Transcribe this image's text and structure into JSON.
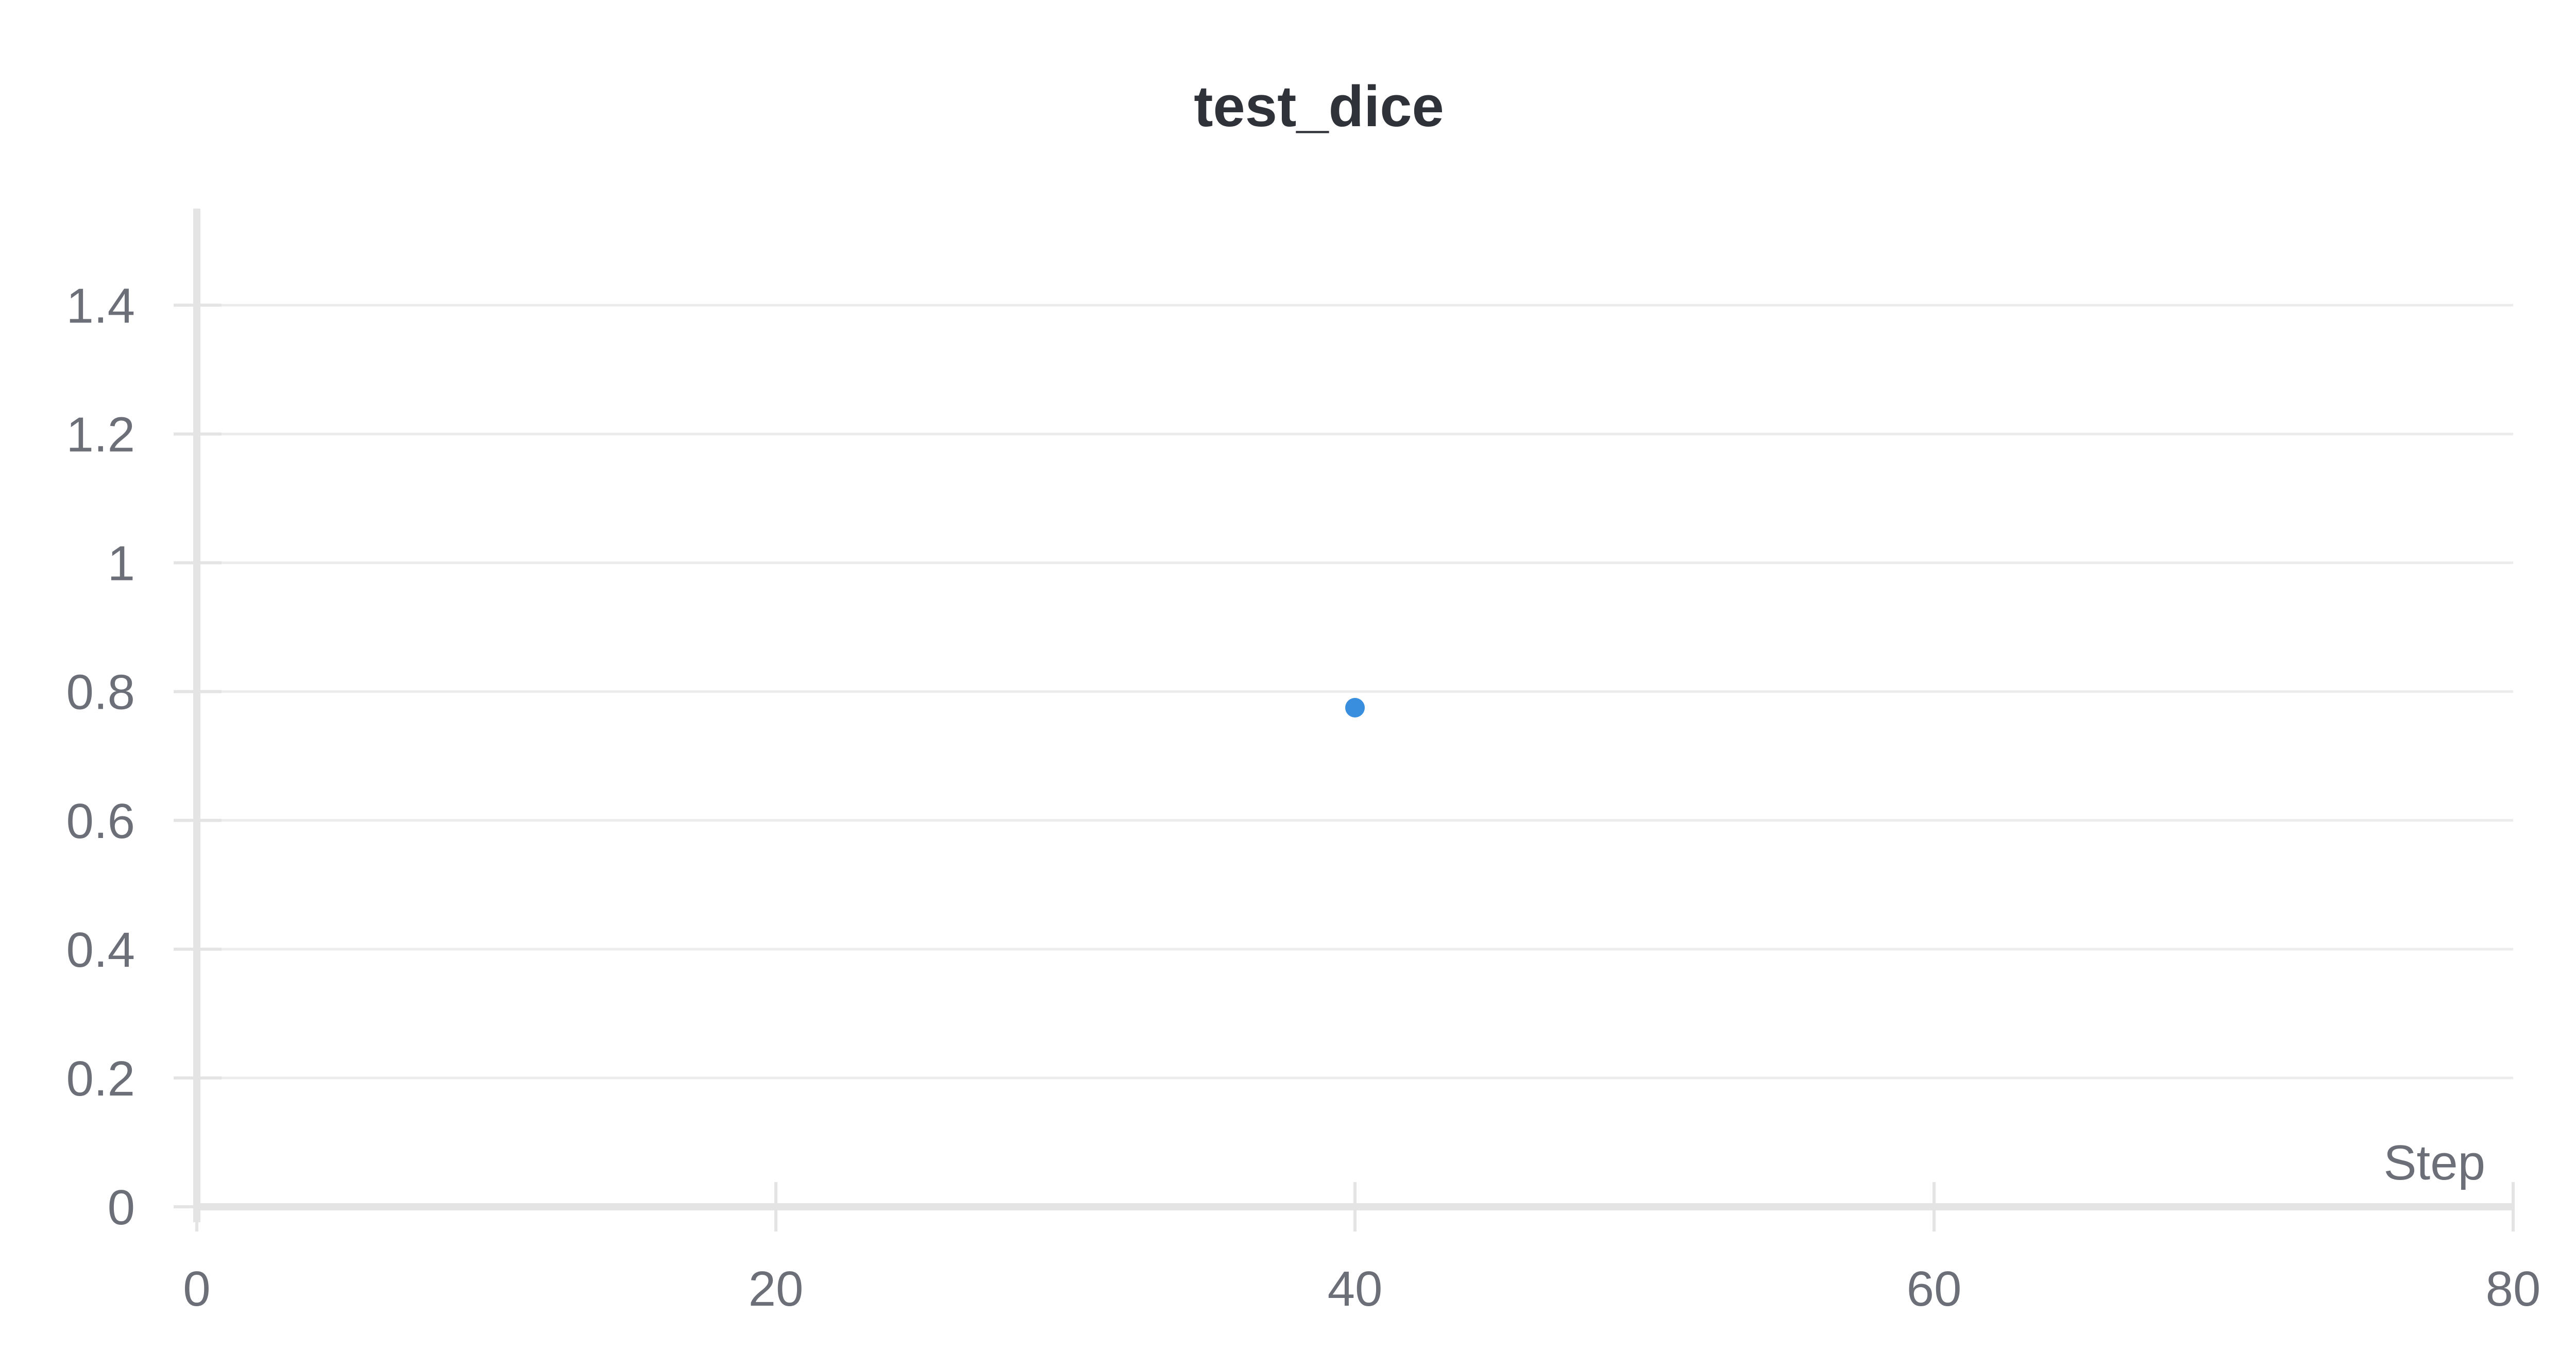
{
  "chart_data": {
    "type": "scatter",
    "title": "test_dice",
    "xlabel": "Step",
    "ylabel": "",
    "xlim": [
      0,
      80
    ],
    "ylim": [
      0,
      1.55
    ],
    "x_ticks": [
      0,
      20,
      40,
      60,
      80
    ],
    "y_ticks": [
      0,
      0.2,
      0.4,
      0.6,
      0.8,
      1,
      1.2,
      1.4
    ],
    "x_tick_labels": [
      "0",
      "20",
      "40",
      "60",
      "80"
    ],
    "y_tick_labels": [
      "0",
      "0.2",
      "0.4",
      "0.6",
      "0.8",
      "1",
      "1.2",
      "1.4"
    ],
    "grid": true,
    "series": [
      {
        "x": [
          40
        ],
        "y": [
          0.775
        ]
      }
    ],
    "colors": {
      "point": "#3a8ede",
      "grid": "#ececec",
      "axis": "#e4e4e4"
    }
  }
}
